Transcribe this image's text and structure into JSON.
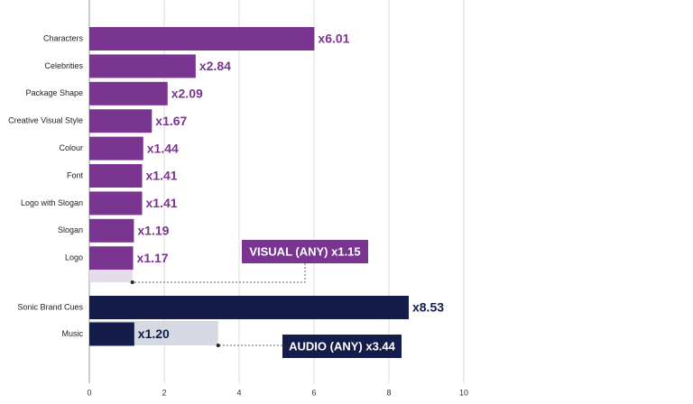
{
  "chart_data": {
    "type": "bar",
    "orientation": "horizontal",
    "groups": [
      {
        "color": "#7a3590",
        "categories": [
          "Characters",
          "Celebrities",
          "Package Shape",
          "Creative Visual Style",
          "Colour",
          "Font",
          "Logo with Slogan",
          "Slogan",
          "Logo"
        ],
        "values": [
          6.01,
          2.84,
          2.09,
          1.67,
          1.44,
          1.41,
          1.41,
          1.19,
          1.17
        ],
        "value_labels": [
          "x6.01",
          "x2.84",
          "x2.09",
          "x1.67",
          "x1.44",
          "x1.41",
          "x1.41",
          "x1.19",
          "x1.17"
        ],
        "combined": {
          "label": "VISUAL (ANY) x1.15",
          "value": 1.15,
          "color": "#e4dcea"
        }
      },
      {
        "color": "#141d4a",
        "categories": [
          "Sonic Brand Cues",
          "Music"
        ],
        "values": [
          8.53,
          1.2
        ],
        "value_labels": [
          "x8.53",
          "x1.20"
        ],
        "combined": {
          "label": "AUDIO (ANY) x3.44",
          "value": 3.44,
          "color": "#d6d8e2"
        }
      }
    ],
    "xlim": [
      0,
      10
    ],
    "xticks": [
      0,
      2,
      4,
      6,
      8,
      10
    ],
    "grid": true
  }
}
